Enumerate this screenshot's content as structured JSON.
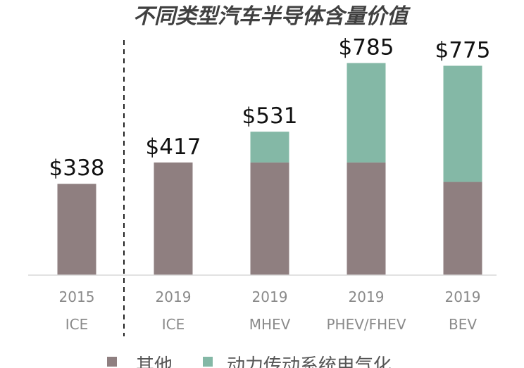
{
  "chart_data": {
    "type": "bar",
    "stacked": true,
    "title": "不同类型汽车半导体含量价值",
    "categories": [
      [
        "2015",
        "ICE"
      ],
      [
        "2019",
        "ICE"
      ],
      [
        "2019",
        "MHEV"
      ],
      [
        "2019",
        "PHEV/FHEV"
      ],
      [
        "2019",
        "BEV"
      ]
    ],
    "series": [
      {
        "name": "其他",
        "color": "#8f7f80",
        "values": [
          338,
          417,
          417,
          417,
          345
        ]
      },
      {
        "name": "动力传动系统电气化",
        "color": "#84b8a6",
        "values": [
          0,
          0,
          114,
          368,
          430
        ]
      }
    ],
    "totals": [
      "$338",
      "$417",
      "$531",
      "$785",
      "$775"
    ],
    "ylim": [
      0,
      870
    ],
    "grid": false,
    "legend_position": "bottom",
    "divider_after_category": 0
  }
}
